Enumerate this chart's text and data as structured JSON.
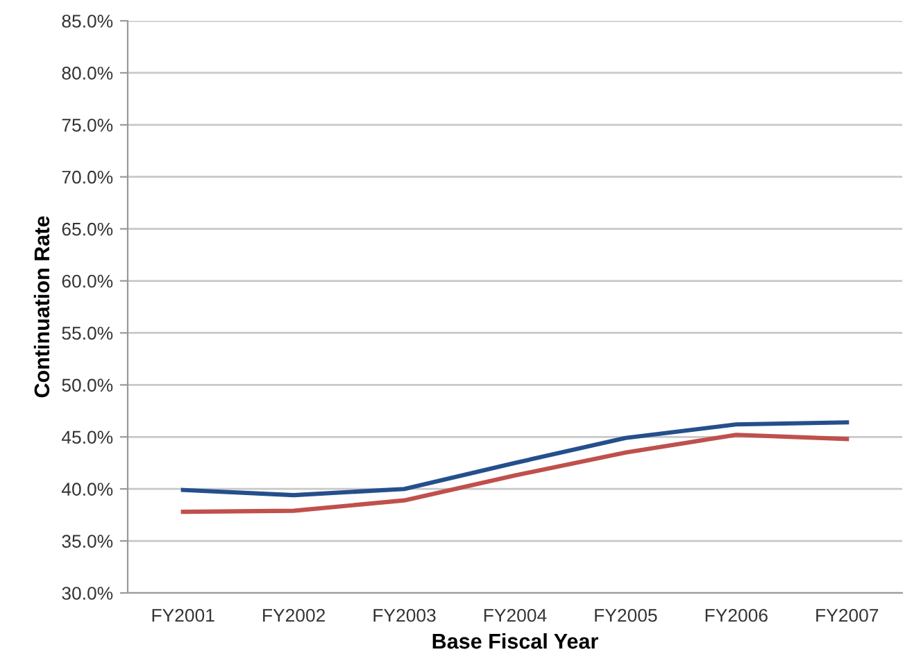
{
  "chart_data": {
    "type": "line",
    "xlabel": "Base Fiscal Year",
    "ylabel": "Continuation Rate",
    "categories": [
      "FY2001",
      "FY2002",
      "FY2003",
      "FY2004",
      "FY2005",
      "FY2006",
      "FY2007"
    ],
    "series": [
      {
        "color": "#254f8c",
        "values": [
          39.9,
          39.4,
          40.0,
          42.5,
          44.9,
          46.2,
          46.4
        ]
      },
      {
        "color": "#c0504d",
        "values": [
          37.8,
          37.9,
          38.9,
          41.3,
          43.5,
          45.2,
          44.8
        ]
      }
    ],
    "ylim": [
      30,
      85
    ],
    "yticks": [
      {
        "value": 30,
        "label": "30.0%"
      },
      {
        "value": 35,
        "label": "35.0%"
      },
      {
        "value": 40,
        "label": "40.0%"
      },
      {
        "value": 45,
        "label": "45.0%"
      },
      {
        "value": 50,
        "label": "50.0%"
      },
      {
        "value": 55,
        "label": "55.0%"
      },
      {
        "value": 60,
        "label": "60.0%"
      },
      {
        "value": 65,
        "label": "65.0%"
      },
      {
        "value": 70,
        "label": "70.0%"
      },
      {
        "value": 75,
        "label": "75.0%"
      },
      {
        "value": 80,
        "label": "80.0%"
      },
      {
        "value": 85,
        "label": "85.0%"
      }
    ],
    "grid": "y",
    "marker": "none",
    "line_style": "solid"
  }
}
